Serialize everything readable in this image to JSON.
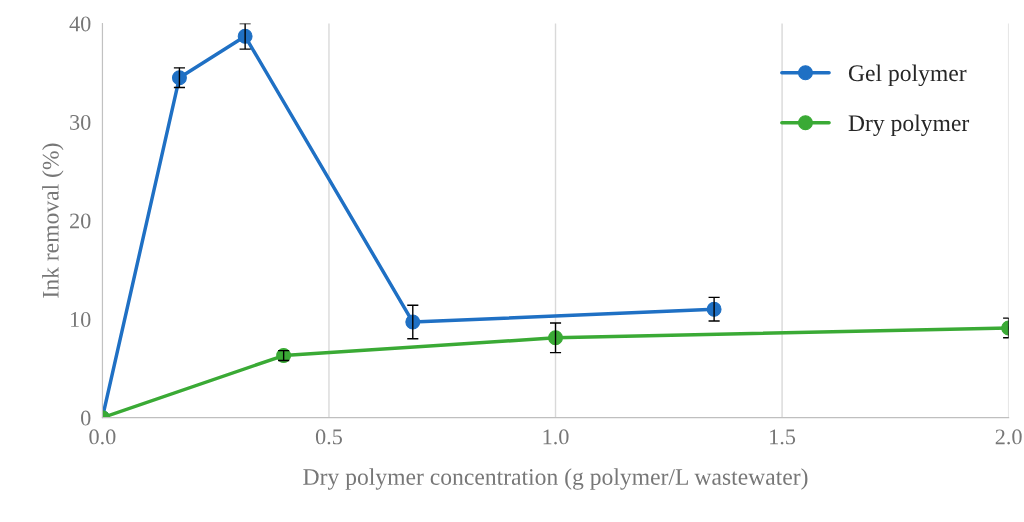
{
  "chart_data": {
    "type": "line",
    "xlabel": "Dry polymer concentration (g polymer/L wastewater)",
    "ylabel": "Ink removal (%)",
    "xlim": [
      0,
      2.0
    ],
    "xticks": [
      {
        "value": 0,
        "label": "0.0"
      },
      0.5,
      {
        "value": 1,
        "label": "1.0"
      },
      1.5,
      {
        "value": 2,
        "label": "2.0"
      }
    ],
    "ylim": [
      0,
      40
    ],
    "yticks": [
      0,
      10,
      20,
      30,
      40
    ],
    "grid": "x",
    "legend": "top right",
    "marker": "circle",
    "line_style": "solid",
    "series": [
      {
        "name": "Gel polymer",
        "color": "#1f70c4",
        "x": [
          0,
          0.17,
          0.315,
          0.685,
          1.35
        ],
        "values": [
          0,
          34.5,
          38.7,
          9.7,
          11.0
        ],
        "errors": [
          null,
          1.0,
          1.3,
          1.7,
          1.2
        ]
      },
      {
        "name": "Dry polymer",
        "color": "#3aaa35",
        "x": [
          0,
          0.4,
          1.0,
          2.0
        ],
        "values": [
          0,
          6.3,
          8.1,
          9.1
        ],
        "errors": [
          null,
          0.5,
          1.5,
          1.0
        ]
      }
    ]
  }
}
